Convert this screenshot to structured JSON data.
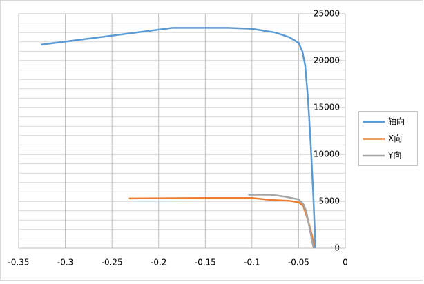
{
  "chart_data": {
    "type": "line",
    "series": [
      {
        "name": "轴向",
        "color": "#5b9bd5",
        "x": [
          -0.326,
          -0.185,
          -0.126,
          -0.1,
          -0.075,
          -0.06,
          -0.05,
          -0.046,
          -0.043,
          -0.04,
          -0.037,
          -0.034,
          -0.032
        ],
        "values": [
          21700,
          23500,
          23500,
          23400,
          23000,
          22500,
          21900,
          21000,
          19500,
          16000,
          11000,
          5000,
          0
        ]
      },
      {
        "name": "X向",
        "color": "#ed7d31",
        "x": [
          -0.232,
          -0.15,
          -0.1,
          -0.08,
          -0.06,
          -0.05,
          -0.045,
          -0.04,
          -0.036,
          -0.033
        ],
        "values": [
          5300,
          5350,
          5350,
          5150,
          5050,
          4900,
          4500,
          3000,
          1500,
          0
        ]
      },
      {
        "name": "Y向",
        "color": "#a5a5a5",
        "x": [
          -0.104,
          -0.08,
          -0.065,
          -0.055,
          -0.05,
          -0.045,
          -0.042,
          -0.039,
          -0.036,
          -0.034
        ],
        "values": [
          5700,
          5700,
          5500,
          5300,
          5200,
          4700,
          4000,
          2500,
          1000,
          0
        ]
      }
    ],
    "xlim": [
      -0.35,
      0
    ],
    "xticks": [
      -0.35,
      -0.3,
      -0.25,
      -0.2,
      -0.15,
      -0.1,
      -0.05,
      0
    ],
    "ylim": [
      0,
      25000
    ],
    "yticks": [
      0,
      5000,
      10000,
      15000,
      20000,
      25000
    ],
    "yminorticks": [
      1000,
      2000,
      3000,
      4000,
      6000,
      7000,
      8000,
      9000,
      11000,
      12000,
      13000,
      14000,
      16000,
      17000,
      18000,
      19000,
      21000,
      22000,
      23000,
      24000
    ],
    "grid": true,
    "legend": "right"
  }
}
